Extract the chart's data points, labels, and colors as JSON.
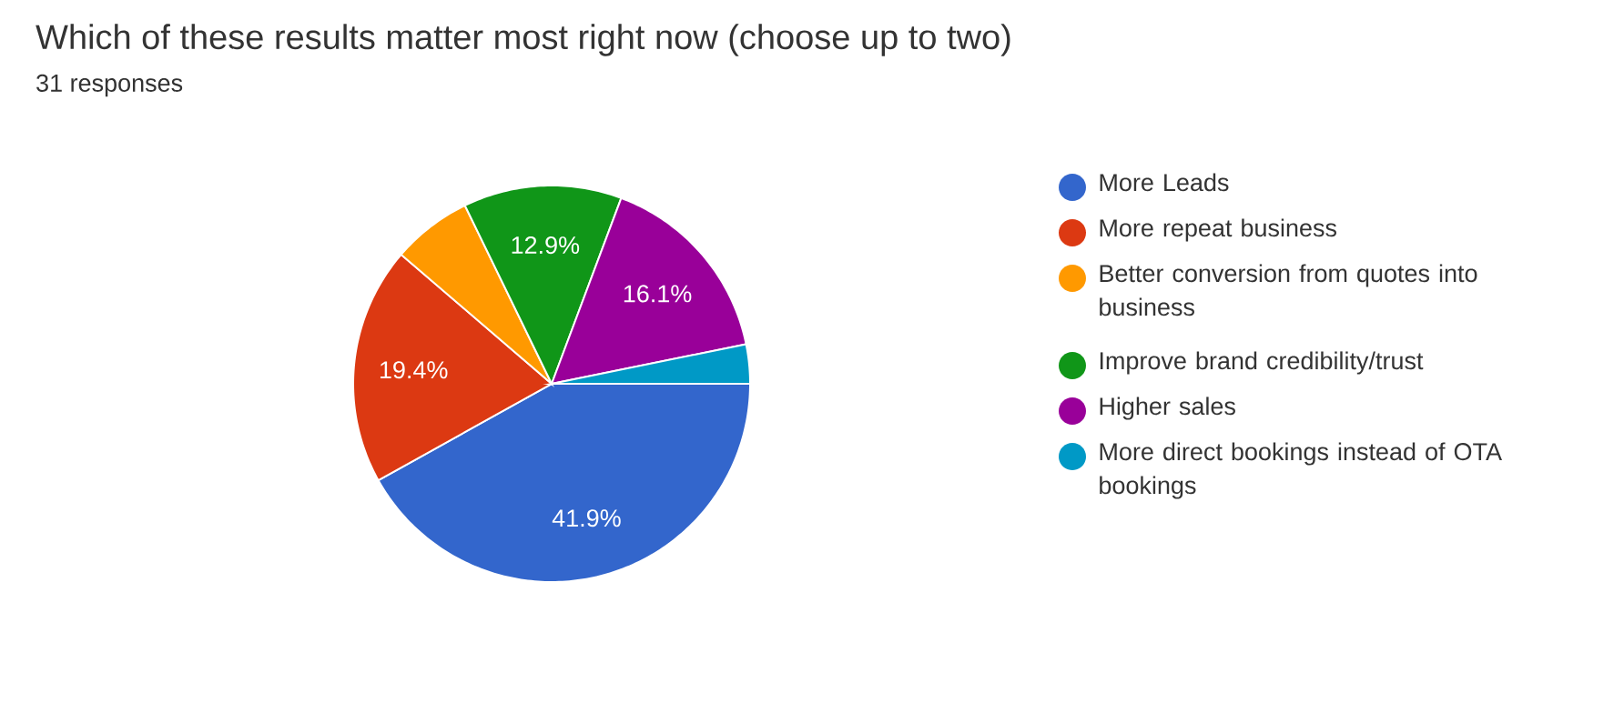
{
  "chart_data": {
    "type": "pie",
    "title": "Which of these results matter most right now (choose up to two)",
    "subtitle": "31 responses",
    "categories": [
      "More Leads",
      "More repeat business",
      "Better conversion from quotes into business",
      "Improve brand credibility/trust",
      "Higher sales",
      "More direct bookings instead of OTA bookings"
    ],
    "values": [
      41.9,
      19.4,
      6.5,
      12.9,
      16.1,
      3.2
    ],
    "value_labels": [
      "41.9%",
      "19.4%",
      null,
      "12.9%",
      "16.1%",
      null
    ],
    "colors": [
      "#3366cc",
      "#dc3912",
      "#ff9900",
      "#109618",
      "#990099",
      "#0099c6"
    ],
    "legend": "right"
  }
}
